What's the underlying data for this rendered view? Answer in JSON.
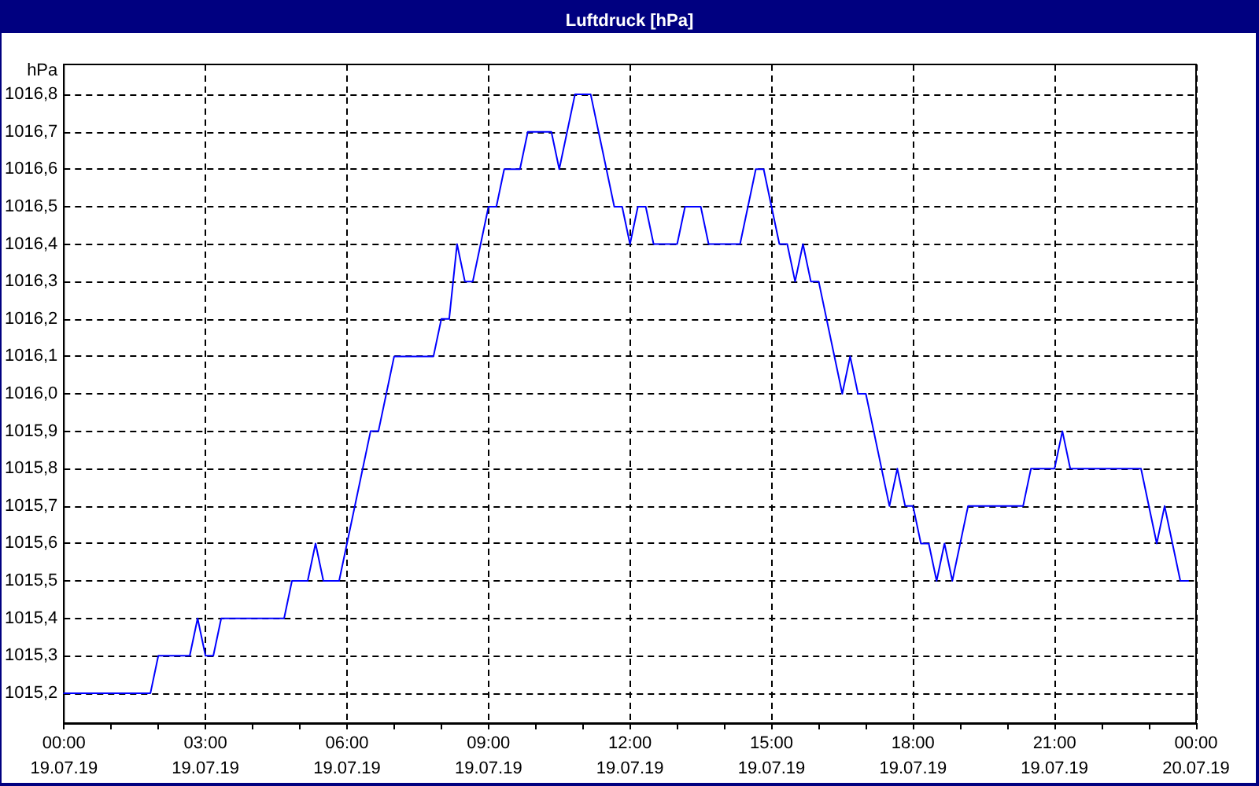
{
  "chart_data": {
    "type": "line",
    "title": "Luftdruck [hPa]",
    "ylabel": "hPa",
    "x": [
      "--07-19T00:00",
      "--07-19T01:50",
      "--07-19T02:00",
      "--07-19T02:40",
      "--07-19T02:50",
      "--07-19T03:00",
      "--07-19T03:10",
      "--07-19T03:20",
      "--07-19T04:40",
      "--07-19T04:50",
      "--07-19T05:10",
      "--07-19T05:20",
      "--07-19T05:30",
      "--07-19T05:50",
      "--07-19T06:30",
      "--07-19T06:40",
      "--07-19T07:00",
      "--07-19T07:50",
      "--07-19T08:00",
      "--07-19T08:10",
      "--07-19T08:20",
      "--07-19T08:30",
      "--07-19T08:40",
      "--07-19T09:00",
      "--07-19T09:10",
      "--07-19T09:20",
      "--07-19T09:40",
      "--07-19T09:50",
      "--07-19T10:20",
      "--07-19T10:30",
      "--07-19T10:50",
      "--07-19T11:10",
      "--07-19T11:40",
      "--07-19T11:50",
      "--07-19T12:00",
      "--07-19T12:10",
      "--07-19T12:20",
      "--07-19T12:30",
      "--07-19T13:00",
      "--07-19T13:10",
      "--07-19T13:30",
      "--07-19T13:40",
      "--07-19T14:20",
      "--07-19T14:40",
      "--07-19T14:50",
      "--07-19T15:10",
      "--07-19T15:20",
      "--07-19T15:30",
      "--07-19T15:40",
      "--07-19T15:50",
      "--07-19T16:00",
      "--07-19T16:30",
      "--07-19T16:40",
      "--07-19T16:50",
      "--07-19T17:00",
      "--07-19T17:30",
      "--07-19T17:40",
      "--07-19T17:50",
      "--07-19T18:00",
      "--07-19T18:10",
      "--07-19T18:20",
      "--07-19T18:30",
      "--07-19T18:40",
      "--07-19T18:50",
      "--07-19T19:10",
      "--07-19T20:20",
      "--07-19T20:30",
      "--07-19T21:00",
      "--07-19T21:10",
      "--07-19T21:20",
      "--07-19T22:50",
      "--07-19T23:10",
      "--07-19T23:20",
      "--07-19T23:40",
      "--07-19T23:50"
    ],
    "series": [
      {
        "color": "#0000ff",
        "values": [
          1015.2,
          1015.2,
          1015.3,
          1015.3,
          1015.4,
          1015.3,
          1015.3,
          1015.4,
          1015.4,
          1015.5,
          1015.5,
          1015.6,
          1015.5,
          1015.5,
          1015.9,
          1015.9,
          1016.1,
          1016.1,
          1016.2,
          1016.2,
          1016.4,
          1016.3,
          1016.3,
          1016.5,
          1016.5,
          1016.6,
          1016.6,
          1016.7,
          1016.7,
          1016.6,
          1016.8,
          1016.8,
          1016.5,
          1016.5,
          1016.4,
          1016.5,
          1016.5,
          1016.4,
          1016.4,
          1016.5,
          1016.5,
          1016.4,
          1016.4,
          1016.6,
          1016.6,
          1016.4,
          1016.4,
          1016.3,
          1016.4,
          1016.3,
          1016.3,
          1016.0,
          1016.1,
          1016.0,
          1016.0,
          1015.7,
          1015.8,
          1015.7,
          1015.7,
          1015.6,
          1015.6,
          1015.5,
          1015.6,
          1015.5,
          1015.7,
          1015.7,
          1015.8,
          1015.8,
          1015.9,
          1015.8,
          1015.8,
          1015.6,
          1015.7,
          1015.5,
          1015.5
        ]
      }
    ],
    "xlim": [
      "--07-19T00:00",
      "--07-20T00:00"
    ],
    "xticks": [
      {
        "value": "--07-19T00:00",
        "label": "00:00\n19.07.19"
      },
      {
        "value": "--07-19T01:00",
        "label": null
      },
      {
        "value": "--07-19T02:00",
        "label": null
      },
      {
        "value": "--07-19T03:00",
        "label": "03:00\n19.07.19"
      },
      {
        "value": "--07-19T04:00",
        "label": null
      },
      {
        "value": "--07-19T05:00",
        "label": null
      },
      {
        "value": "--07-19T06:00",
        "label": "06:00\n19.07.19"
      },
      {
        "value": "--07-19T07:00",
        "label": null
      },
      {
        "value": "--07-19T08:00",
        "label": null
      },
      {
        "value": "--07-19T09:00",
        "label": "09:00\n19.07.19"
      },
      {
        "value": "--07-19T10:00",
        "label": null
      },
      {
        "value": "--07-19T11:00",
        "label": null
      },
      {
        "value": "--07-19T12:00",
        "label": "12:00\n19.07.19"
      },
      {
        "value": "--07-19T13:00",
        "label": null
      },
      {
        "value": "--07-19T14:00",
        "label": null
      },
      {
        "value": "--07-19T15:00",
        "label": "15:00\n19.07.19"
      },
      {
        "value": "--07-19T16:00",
        "label": null
      },
      {
        "value": "--07-19T17:00",
        "label": null
      },
      {
        "value": "--07-19T18:00",
        "label": "18:00\n19.07.19"
      },
      {
        "value": "--07-19T19:00",
        "label": null
      },
      {
        "value": "--07-19T20:00",
        "label": null
      },
      {
        "value": "--07-19T21:00",
        "label": "21:00\n19.07.19"
      },
      {
        "value": "--07-19T22:00",
        "label": null
      },
      {
        "value": "--07-19T23:00",
        "label": null
      },
      {
        "value": "--07-20T00:00",
        "label": "00:00\n20.07.19"
      }
    ],
    "ylim": [
      1015.12,
      1016.88
    ],
    "yticks": [
      {
        "value": 1015.2,
        "label": "1015,2"
      },
      {
        "value": 1015.3,
        "label": "1015,3"
      },
      {
        "value": 1015.4,
        "label": "1015,4"
      },
      {
        "value": 1015.5,
        "label": "1015,5"
      },
      {
        "value": 1015.6,
        "label": "1015,6"
      },
      {
        "value": 1015.7,
        "label": "1015,7"
      },
      {
        "value": 1015.8,
        "label": "1015,8"
      },
      {
        "value": 1015.9,
        "label": "1015,9"
      },
      {
        "value": 1016.0,
        "label": "1016,0"
      },
      {
        "value": 1016.1,
        "label": "1016,1"
      },
      {
        "value": 1016.2,
        "label": "1016,2"
      },
      {
        "value": 1016.3,
        "label": "1016,3"
      },
      {
        "value": 1016.4,
        "label": "1016,4"
      },
      {
        "value": 1016.5,
        "label": "1016,5"
      },
      {
        "value": 1016.6,
        "label": "1016,6"
      },
      {
        "value": 1016.7,
        "label": "1016,7"
      },
      {
        "value": 1016.8,
        "label": "1016,8"
      }
    ],
    "grid": true,
    "marker": "none",
    "line_style": "solid"
  }
}
